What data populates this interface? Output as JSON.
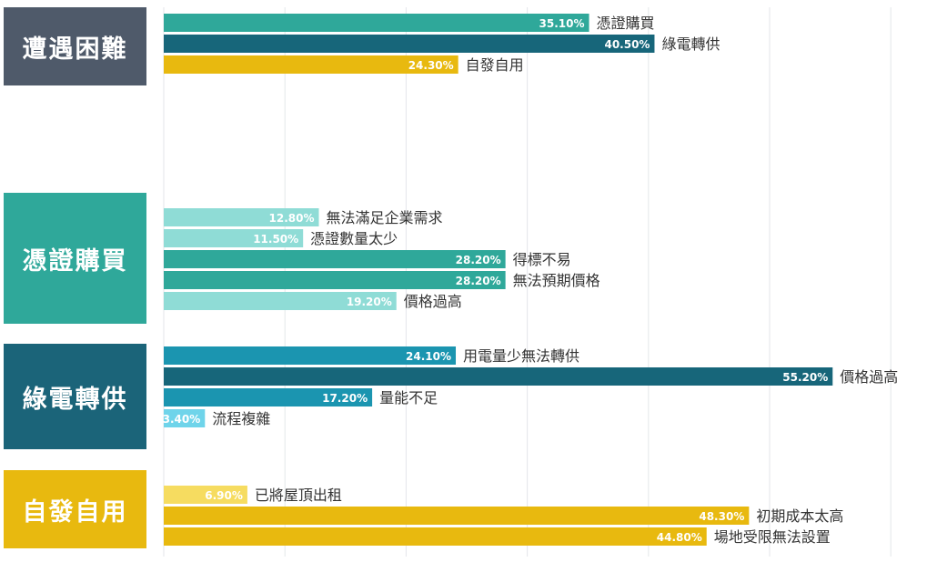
{
  "chart_data": {
    "type": "bar",
    "orientation": "horizontal",
    "title": "",
    "xlabel": "",
    "ylabel": "",
    "xlim": [
      0,
      60
    ],
    "grid": true,
    "value_suffix": "%",
    "groups": [
      {
        "label": "遭遇困難",
        "label_color": "#4f5a6a",
        "bars": [
          {
            "category": "憑證購買",
            "value": 35.1,
            "value_label": "35.10%",
            "color": "#2fa89a"
          },
          {
            "category": "綠電轉供",
            "value": 40.5,
            "value_label": "40.50%",
            "color": "#17667a"
          },
          {
            "category": "自發自用",
            "value": 24.3,
            "value_label": "24.30%",
            "color": "#e8b90f"
          }
        ]
      },
      {
        "label": "憑證購買",
        "label_color": "#2fa89a",
        "bars": [
          {
            "category": "無法滿足企業需求",
            "value": 12.8,
            "value_label": "12.80%",
            "color": "#8fdcd6"
          },
          {
            "category": "憑證數量太少",
            "value": 11.5,
            "value_label": "11.50%",
            "color": "#8fdcd6"
          },
          {
            "category": "得標不易",
            "value": 28.2,
            "value_label": "28.20%",
            "color": "#2fa89a"
          },
          {
            "category": "無法預期價格",
            "value": 28.2,
            "value_label": "28.20%",
            "color": "#2fa89a"
          },
          {
            "category": "價格過高",
            "value": 19.2,
            "value_label": "19.20%",
            "color": "#8fdcd6"
          }
        ]
      },
      {
        "label": "綠電轉供",
        "label_color": "#1b6479",
        "bars": [
          {
            "category": "用電量少無法轉供",
            "value": 24.1,
            "value_label": "24.10%",
            "color": "#1b95b0"
          },
          {
            "category": "價格過高",
            "value": 55.2,
            "value_label": "55.20%",
            "color": "#17667a"
          },
          {
            "category": "量能不足",
            "value": 17.2,
            "value_label": "17.20%",
            "color": "#1b95b0"
          },
          {
            "category": "流程複雜",
            "value": 3.4,
            "value_label": "3.40%",
            "color": "#6fd4ea"
          }
        ]
      },
      {
        "label": "自發自用",
        "label_color": "#e8b90f",
        "bars": [
          {
            "category": "已將屋頂出租",
            "value": 6.9,
            "value_label": "6.90%",
            "color": "#f6dc60"
          },
          {
            "category": "初期成本太高",
            "value": 48.3,
            "value_label": "48.30%",
            "color": "#e8b90f"
          },
          {
            "category": "場地受限無法設置",
            "value": 44.8,
            "value_label": "44.80%",
            "color": "#e8b90f"
          }
        ]
      }
    ]
  }
}
